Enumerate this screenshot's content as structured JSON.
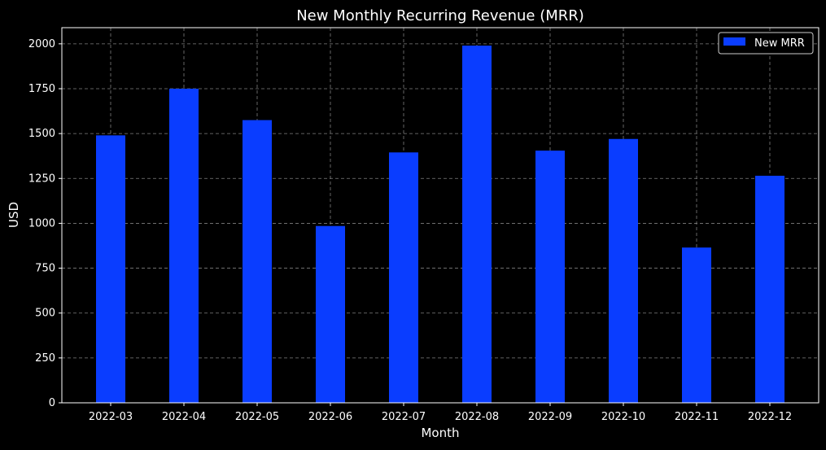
{
  "chart_data": {
    "type": "bar",
    "title": "New Monthly Recurring Revenue (MRR)",
    "xlabel": "Month",
    "ylabel": "USD",
    "categories": [
      "2022-03",
      "2022-04",
      "2022-05",
      "2022-06",
      "2022-07",
      "2022-08",
      "2022-09",
      "2022-10",
      "2022-11",
      "2022-12"
    ],
    "series": [
      {
        "name": "New MRR",
        "values": [
          1490,
          1750,
          1575,
          985,
          1395,
          1990,
          1405,
          1470,
          865,
          1265
        ]
      }
    ],
    "yticks": [
      0,
      250,
      500,
      750,
      1000,
      1250,
      1500,
      1750,
      2000
    ],
    "ylim": [
      0,
      2090
    ],
    "grid": true,
    "legend_position": "top-right",
    "background_color": "#000000",
    "bar_color": "#0a3dff",
    "text_color": "#ffffff",
    "grid_color": "#7f7f7f"
  }
}
